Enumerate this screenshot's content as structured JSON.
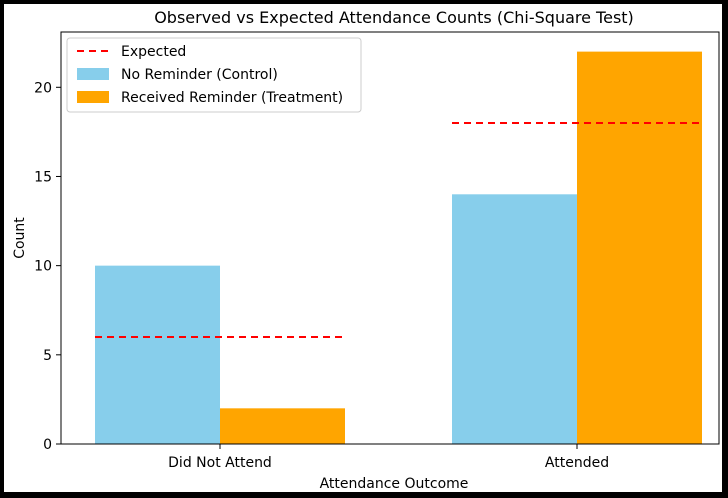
{
  "chart_data": {
    "type": "bar",
    "title": "Observed vs Expected Attendance Counts (Chi-Square Test)",
    "xlabel": "Attendance Outcome",
    "ylabel": "Count",
    "categories": [
      "Did Not Attend",
      "Attended"
    ],
    "series": [
      {
        "name": "No Reminder (Control)",
        "values": [
          10,
          14
        ],
        "color": "#87CEEB"
      },
      {
        "name": "Received Reminder (Treatment)",
        "values": [
          2,
          22
        ],
        "color": "#FFA500"
      }
    ],
    "expected": {
      "name": "Expected",
      "values": [
        6,
        18
      ],
      "color": "#FF0000",
      "style": "dashed"
    },
    "ylim": [
      0,
      23.1
    ],
    "yticks": [
      0,
      5,
      10,
      15,
      20
    ],
    "grid": false,
    "legend": "top-left"
  }
}
